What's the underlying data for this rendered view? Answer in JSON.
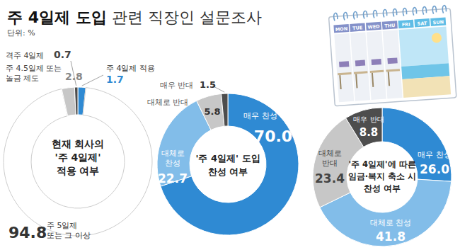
{
  "header": {
    "title_bold": "주 4일제 도입",
    "title_rest": " 관련 직장인 설문조사",
    "unit": "단위: %"
  },
  "illustration": {
    "days": [
      "MON",
      "TUE",
      "WED",
      "THU",
      "FRI",
      "SAT",
      "SUN"
    ]
  },
  "chart_data": [
    {
      "type": "donut",
      "title": "현재 회사의\n'주 4일제'\n적용 여부",
      "categories": [
        "주 4일제 적용",
        "주 5일제\n또는 그 이상",
        "주 4.5일제 또는\n놀금 제도",
        "격주 4일제"
      ],
      "values": [
        1.7,
        94.8,
        2.8,
        0.7
      ],
      "colors": [
        "#2f8ad3",
        "#ffffff",
        "#c7c7c7",
        "#4d4d4d"
      ],
      "data_labels": true
    },
    {
      "type": "donut",
      "title": "'주 4일제' 도입\n찬성 여부",
      "categories": [
        "매우 찬성",
        "대체로\n찬성",
        "대체로 반대",
        "매우 반대"
      ],
      "values": [
        70,
        22.7,
        5.8,
        1.5
      ],
      "value_labels": [
        "70.0",
        "22.7",
        "5.8",
        "1.5"
      ],
      "colors": [
        "#2f8ad3",
        "#82bde9",
        "#c7c7c7",
        "#4d4d4d"
      ],
      "data_labels": true
    },
    {
      "type": "donut",
      "title": "'주 4일제'에 따른\n임금·복지 축소 시\n찬성 여부",
      "categories": [
        "매우 찬성",
        "대체로 찬성",
        "대체로\n반대",
        "매우 반대"
      ],
      "values": [
        26,
        41.8,
        23.4,
        8.8
      ],
      "value_labels": [
        "26.0",
        "41.8",
        "23.4",
        "8.8"
      ],
      "colors": [
        "#2f8ad3",
        "#82bde9",
        "#c7c7c7",
        "#4d4d4d"
      ],
      "data_labels": true
    }
  ]
}
